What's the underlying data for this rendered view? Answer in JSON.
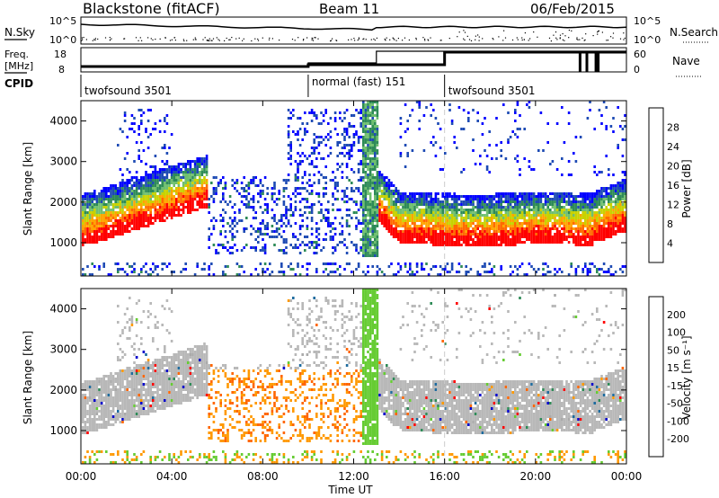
{
  "header": {
    "radar": "Blackstone (fitACF)",
    "beam": "Beam 11",
    "date": "06/Feb/2015"
  },
  "noise_panel": {
    "left_label": "N.Sky",
    "right_label": "N.Search",
    "yticks_left": [
      "10^5",
      "10^0"
    ],
    "yticks_right": [
      "10^5",
      "10^0"
    ]
  },
  "freq_panel": {
    "left_label_1": "Freq.",
    "left_label_2": "[MHz]",
    "right_label": "Nave",
    "yticks_left": [
      "18",
      "8"
    ],
    "yticks_right": [
      "60",
      "0"
    ]
  },
  "cpid": {
    "label": "CPID",
    "segments": [
      {
        "name": "twofsound 3501",
        "start_h": 0,
        "end_h": 10
      },
      {
        "name": "normal (fast) 151",
        "start_h": 10,
        "end_h": 16
      },
      {
        "name": "twofsound 3501",
        "start_h": 16,
        "end_h": 24
      }
    ]
  },
  "colors": {
    "power": [
      "#0000ff",
      "#1e4bb4",
      "#2e8b57",
      "#6fbf6f",
      "#c8d200",
      "#ffa500",
      "#ff6a00",
      "#ff0000"
    ],
    "velocity": [
      "#0000cc",
      "#1e6b9e",
      "#2e8b57",
      "#66cc33",
      "#b8b8b8",
      "#aaaaaa",
      "#ff9900",
      "#ff6600",
      "#ff0000"
    ]
  },
  "chart_data": [
    {
      "type": "heatmap",
      "name": "power",
      "ylabel": "Slant Range [km]",
      "ylim": [
        180,
        4500
      ],
      "yticks": [
        1000,
        2000,
        3000,
        4000
      ],
      "xlim": [
        0,
        24
      ],
      "colorbar_label": "Power [dB]",
      "colorbar_ticks": [
        "4",
        "8",
        "12",
        "16",
        "20",
        "24",
        "28"
      ],
      "colorbar_range": [
        0,
        30
      ]
    },
    {
      "type": "heatmap",
      "name": "velocity",
      "ylabel": "Slant Range [km]",
      "ylim": [
        180,
        4500
      ],
      "yticks": [
        1000,
        2000,
        3000,
        4000
      ],
      "xlim": [
        0,
        24
      ],
      "colorbar_label": "Velocity [m s⁻¹]",
      "colorbar_ticks": [
        "200",
        "100",
        "50",
        "15",
        "-15",
        "-50",
        "-100",
        "-200"
      ]
    }
  ],
  "xaxis": {
    "label": "Time UT",
    "ticks": [
      "00:00",
      "04:00",
      "08:00",
      "12:00",
      "16:00",
      "20:00",
      "00:00"
    ]
  }
}
